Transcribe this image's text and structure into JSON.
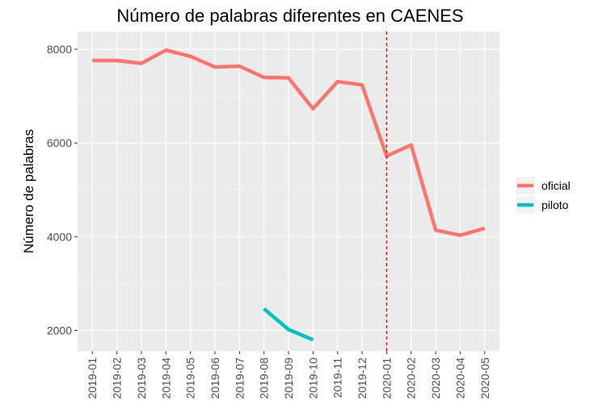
{
  "chart_data": {
    "type": "line",
    "title": "Número de palabras diferentes en CAENES",
    "xlabel": "",
    "ylabel": "Número de palabras",
    "categories": [
      "2019-01",
      "2019-02",
      "2019-03",
      "2019-04",
      "2019-05",
      "2019-06",
      "2019-07",
      "2019-08",
      "2019-09",
      "2019-10",
      "2019-11",
      "2019-12",
      "2020-01",
      "2020-02",
      "2020-03",
      "2020-04",
      "2020-05"
    ],
    "y_ticks": [
      2000,
      4000,
      6000,
      8000
    ],
    "ylim": [
      1560,
      8380
    ],
    "grid": true,
    "legend_position": "right",
    "series": [
      {
        "name": "oficial",
        "color": "#F8766D",
        "values": [
          7760,
          7760,
          7700,
          7980,
          7850,
          7620,
          7640,
          7400,
          7390,
          6730,
          7310,
          7240,
          5720,
          5960,
          4140,
          4030,
          4180
        ]
      },
      {
        "name": "piloto",
        "color": "#00BFC4",
        "values": [
          null,
          null,
          null,
          null,
          null,
          null,
          null,
          2460,
          2020,
          1800,
          null,
          null,
          null,
          null,
          null,
          null,
          null
        ]
      }
    ],
    "reference_line": {
      "x": "2020-01",
      "color": "#FF0000",
      "style": "dashed"
    },
    "panel_background": "#EBEBEB",
    "gridline_color": "#FFFFFF"
  }
}
